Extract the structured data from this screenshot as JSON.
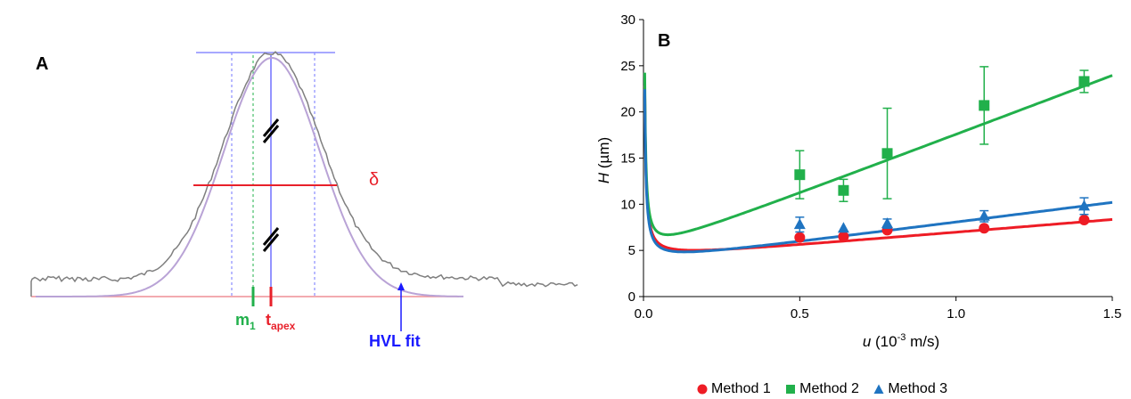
{
  "panel_a": {
    "label": "A",
    "delta_label": "δ",
    "m1_main": "m",
    "m1_sub": "1",
    "tapex_main": "t",
    "tapex_sub": "apex",
    "hvl_label": "HVL fit",
    "colors": {
      "m1": "#21b04b",
      "tapex": "#e8202a",
      "hvl": "#1a1aff",
      "delta": "#e8202a",
      "fit": "#b9a3d6",
      "trace": "#7f7f7f"
    }
  },
  "chart_data": {
    "type": "scatter",
    "panel_label": "B",
    "xlabel_italic": "u",
    "xlabel_rest_pre": " (10",
    "xlabel_sup": "-3",
    "xlabel_rest_post": " m/s)",
    "ylabel_italic": "H",
    "ylabel_rest": " (µm)",
    "xlim": [
      0,
      1.5
    ],
    "ylim": [
      0,
      30
    ],
    "xticks": [
      "0.0",
      "0.5",
      "1.0",
      "1.5"
    ],
    "yticks": [
      "0",
      "5",
      "10",
      "15",
      "20",
      "25",
      "30"
    ],
    "grid": false,
    "legend_position": "bottom",
    "series": [
      {
        "name": "Method 1",
        "color": "#ee1c25",
        "marker": "circle",
        "points": [
          {
            "x": 0.5,
            "y": 6.4,
            "err": 0.3
          },
          {
            "x": 0.64,
            "y": 6.5,
            "err": 0.3
          },
          {
            "x": 0.78,
            "y": 7.2,
            "err": 0.3
          },
          {
            "x": 1.09,
            "y": 7.4,
            "err": 0.3
          },
          {
            "x": 1.41,
            "y": 8.3,
            "err": 0.3
          }
        ],
        "fit": {
          "A": 4.1,
          "B": 0.075,
          "C": 2.8
        }
      },
      {
        "name": "Method 2",
        "color": "#21b04b",
        "marker": "square",
        "points": [
          {
            "x": 0.5,
            "y": 13.2,
            "err": 2.6
          },
          {
            "x": 0.64,
            "y": 11.5,
            "err": 1.2
          },
          {
            "x": 0.78,
            "y": 15.5,
            "err": 4.9
          },
          {
            "x": 1.09,
            "y": 20.7,
            "err": 4.2
          },
          {
            "x": 1.41,
            "y": 23.3,
            "err": 1.2
          }
        ],
        "fit": {
          "A": 4.7,
          "B": 0.078,
          "C": 12.8
        }
      },
      {
        "name": "Method 3",
        "color": "#1f74c1",
        "marker": "triangle",
        "points": [
          {
            "x": 0.5,
            "y": 7.8,
            "err": 0.8
          },
          {
            "x": 0.64,
            "y": 7.4,
            "err": 0.4
          },
          {
            "x": 0.78,
            "y": 7.9,
            "err": 0.5
          },
          {
            "x": 1.09,
            "y": 8.7,
            "err": 0.6
          },
          {
            "x": 1.41,
            "y": 9.8,
            "err": 0.9
          }
        ],
        "fit": {
          "A": 3.7,
          "B": 0.075,
          "C": 4.3
        }
      }
    ]
  }
}
